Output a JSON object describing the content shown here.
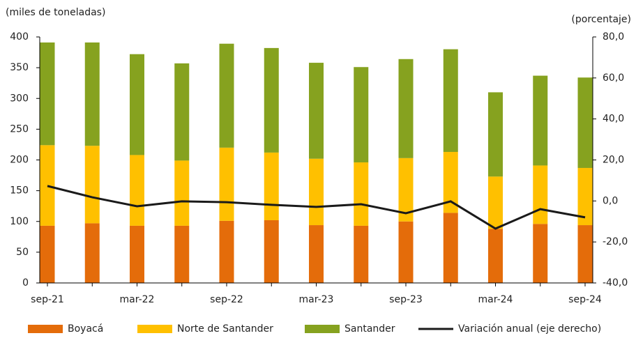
{
  "chart_data": {
    "type": "bar",
    "y_label": "(miles de toneladas)",
    "y2_label": "(porcentaje)",
    "categories": [
      "sep-21",
      null,
      "mar-22",
      null,
      "sep-22",
      null,
      "mar-23",
      null,
      "sep-23",
      null,
      "mar-24",
      null,
      "sep-24"
    ],
    "stacked": true,
    "series": [
      {
        "name": "Boyacá",
        "color": "#e46c0a",
        "values": [
          93,
          97,
          93,
          93,
          101,
          102,
          94,
          93,
          100,
          114,
          88,
          96,
          94
        ]
      },
      {
        "name": "Norte de Santander",
        "color": "#ffc000",
        "values": [
          131,
          126,
          115,
          106,
          119,
          110,
          108,
          103,
          103,
          99,
          85,
          95,
          93
        ]
      },
      {
        "name": "Santander",
        "color": "#86a21f",
        "values": [
          167,
          168,
          164,
          158,
          169,
          170,
          156,
          155,
          161,
          167,
          137,
          146,
          147
        ]
      },
      {
        "name": "Variación anual (eje derecho)",
        "color": "#1a1a1a",
        "type": "line",
        "axis": "y2",
        "values": [
          7.3,
          1.8,
          -2.6,
          -0.2,
          -0.6,
          -1.9,
          -2.9,
          -1.6,
          -6.0,
          -0.2,
          -13.5,
          -4.0,
          -8.0
        ]
      }
    ],
    "ylim": [
      0,
      400
    ],
    "yticks": [
      0,
      50,
      100,
      150,
      200,
      250,
      300,
      350,
      400
    ],
    "y2lim": [
      -40,
      80
    ],
    "y2ticks": [
      {
        "value": -40,
        "label": "-40,0"
      },
      {
        "value": -20,
        "label": "-20,0"
      },
      {
        "value": 0,
        "label": "0,0"
      },
      {
        "value": 20,
        "label": "20,0"
      },
      {
        "value": 40,
        "label": "40,0"
      },
      {
        "value": 60,
        "label": "60,0"
      },
      {
        "value": 80,
        "label": "80,0"
      }
    ],
    "legend": "bottom"
  }
}
